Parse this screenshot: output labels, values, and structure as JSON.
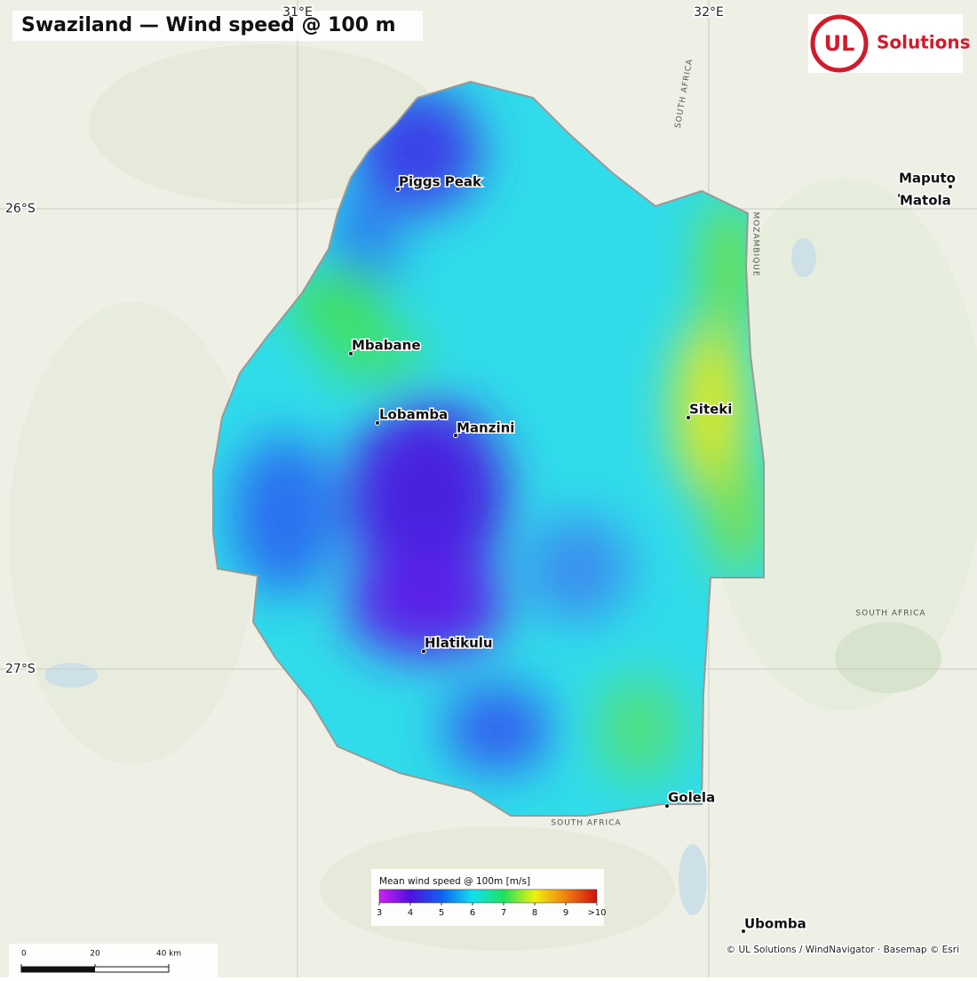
{
  "title": "Swaziland — Wind speed @ 100 m",
  "logo": {
    "mark": "UL",
    "text": "Solutions"
  },
  "graticule": {
    "lon": [
      "31°E",
      "32°E"
    ],
    "lat": [
      "26°S",
      "27°S"
    ]
  },
  "cities": [
    "Piggs Peak",
    "Mbabane",
    "Lobamba",
    "Manzini",
    "Siteki",
    "Hlatikulu",
    "Golela",
    "Maputo",
    "Matola",
    "Ubomba"
  ],
  "basemap_labels": [
    "SOUTH AFRICA",
    "SOUTH AFRICA",
    "MOZAMBIQUE",
    "SOUTH AFRICA"
  ],
  "colorbar": {
    "title": "Mean wind speed @ 100m [m/s]",
    "range": [
      3,
      10
    ],
    "ticks": [
      3,
      4,
      5,
      6,
      7,
      8,
      9,
      {
        "value": 10,
        "label": ">10"
      }
    ],
    "colors": [
      "#d020f0",
      "#5010e0",
      "#1060f0",
      "#10e0f0",
      "#20e060",
      "#f0f010",
      "#f08010",
      "#d01010"
    ]
  },
  "scale_bar": {
    "range": [
      0,
      40
    ],
    "ticks": [
      0,
      20,
      {
        "value": 40,
        "label": "40 km"
      }
    ]
  },
  "attribution": "© UL Solutions / WindNavigator · Basemap © Esri"
}
